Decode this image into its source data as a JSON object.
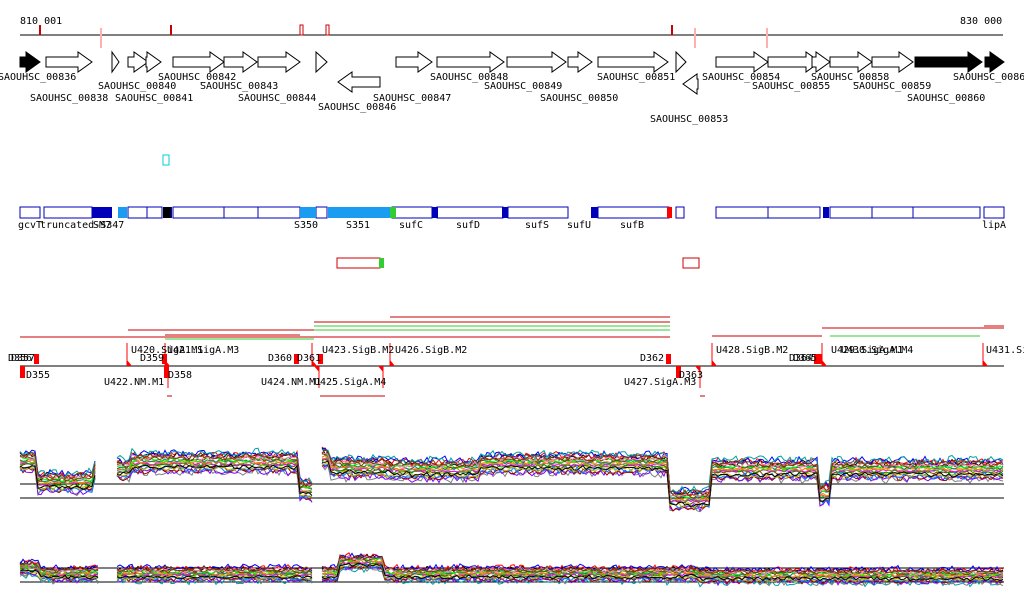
{
  "coords": {
    "start": "810 001",
    "end": "830 000"
  },
  "colors": {
    "feature_red": "#cc0000",
    "feature_pink": "#ffb0b0",
    "segment_blue": "#0000b8",
    "segment_light": "#1a9cf0",
    "segment_green": "#33cc33",
    "segment_red": "#ff0000",
    "marker_cyan": "#00d0d0",
    "tss_red": "#ff0000",
    "bar_green": "#33cc33"
  },
  "genes": {
    "row1": [
      "SAOUHSC_00836",
      "SAOUHSC_00840",
      "SAOUHSC_00842",
      "SAOUHSC_00848",
      "SAOUHSC_00851",
      "SAOUHSC_00854",
      "SAOUHSC_00858",
      "SAOUHSC_0086"
    ],
    "row2": [
      "SAOUHSC_00838",
      "SAOUHSC_00841",
      "SAOUHSC_00843",
      "SAOUHSC_00849",
      "SAOUHSC_00855",
      "SAOUHSC_00859"
    ],
    "row3": [
      "SAOUHSC_00844",
      "SAOUHSC_00847",
      "SAOUHSC_00850",
      "SAOUHSC_00860"
    ],
    "row4": [
      "SAOUHSC_00846"
    ],
    "row5": [
      "SAOUHSC_00853"
    ]
  },
  "segments": {
    "labels": [
      "gcvT",
      "truncated-S347",
      "S350",
      "S351",
      "sufC",
      "sufD",
      "sufS",
      "sufU",
      "sufB",
      "lipA"
    ],
    "overlap_label": "SM7"
  },
  "tss": {
    "upper_labels": [
      "D356",
      "D357",
      "U420.SigA.M1",
      "D359",
      "U421.SigA.M3",
      "D360",
      "D361",
      "U423.SigB.M2",
      "U426.SigB.M2",
      "D362",
      "U428.SigB.M2",
      "D364",
      "D365",
      "U429.SigA.M1",
      "U430.SigA.M4",
      "U431.Si"
    ],
    "lower_labels": [
      "D355",
      "U422.NM.M1",
      "D358",
      "U424.NM.M1",
      "U425.SigA.M4",
      "U427.SigA.M3",
      "D363"
    ]
  }
}
